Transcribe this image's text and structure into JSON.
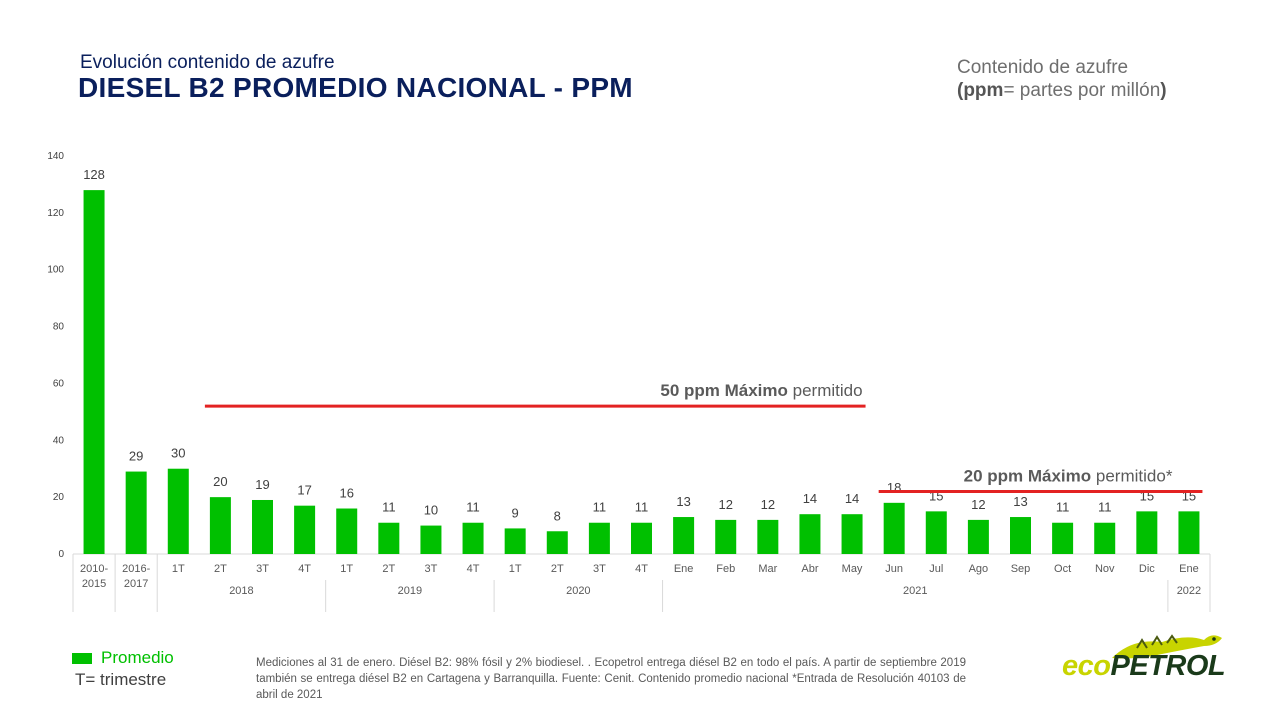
{
  "header": {
    "subtitle": "Evolución contenido de azufre",
    "title": "DIESEL B2 PROMEDIO NACIONAL - PPM",
    "unit_line1": "Contenido de azufre",
    "unit_line2_bold_open": "(ppm",
    "unit_line2_text": "= partes por millón",
    "unit_line2_bold_close": ")"
  },
  "chart_data": {
    "type": "bar",
    "categories": [
      "2010-2015",
      "2016-2017",
      "1T",
      "2T",
      "3T",
      "4T",
      "1T",
      "2T",
      "3T",
      "4T",
      "1T",
      "2T",
      "3T",
      "4T",
      "Ene",
      "Feb",
      "Mar",
      "Abr",
      "May",
      "Jun",
      "Jul",
      "Ago",
      "Sep",
      "Oct",
      "Nov",
      "Dic",
      "Ene"
    ],
    "category_labels": [
      [
        "2010-",
        "2015"
      ],
      [
        "2016-",
        "2017"
      ],
      [
        "1T"
      ],
      [
        "2T"
      ],
      [
        "3T"
      ],
      [
        "4T"
      ],
      [
        "1T"
      ],
      [
        "2T"
      ],
      [
        "3T"
      ],
      [
        "4T"
      ],
      [
        "1T"
      ],
      [
        "2T"
      ],
      [
        "3T"
      ],
      [
        "4T"
      ],
      [
        "Ene"
      ],
      [
        "Feb"
      ],
      [
        "Mar"
      ],
      [
        "Abr"
      ],
      [
        "May"
      ],
      [
        "Jun"
      ],
      [
        "Jul"
      ],
      [
        "Ago"
      ],
      [
        "Sep"
      ],
      [
        "Oct"
      ],
      [
        "Nov"
      ],
      [
        "Dic"
      ],
      [
        "Ene"
      ]
    ],
    "groups": [
      {
        "label": "2018",
        "start": 2,
        "end": 5
      },
      {
        "label": "2019",
        "start": 6,
        "end": 9
      },
      {
        "label": "2020",
        "start": 10,
        "end": 13
      },
      {
        "label": "2021",
        "start": 14,
        "end": 25
      },
      {
        "label": "2022",
        "start": 26,
        "end": 26
      }
    ],
    "series": [
      {
        "name": "Promedio",
        "color": "#00c000",
        "values": [
          128,
          29,
          30,
          20,
          19,
          17,
          16,
          11,
          10,
          11,
          9,
          8,
          11,
          11,
          13,
          12,
          12,
          14,
          14,
          18,
          15,
          12,
          13,
          11,
          11,
          15,
          15
        ]
      }
    ],
    "ylim": [
      0,
      140
    ],
    "yticks": [
      0,
      20,
      40,
      60,
      80,
      100,
      120,
      140
    ],
    "limits": [
      {
        "value": 52,
        "from_index": 3,
        "to_index": 18,
        "bold": "50 ppm Máximo",
        "text": " permitido",
        "color": "#e32222"
      },
      {
        "value": 22,
        "from_index": 19,
        "to_index": 26,
        "bold": "20 ppm Máximo",
        "text": " permitido*",
        "color": "#e32222"
      }
    ],
    "grid": false
  },
  "legend": {
    "label": "Promedio",
    "note": "T= trimestre"
  },
  "footnote": {
    "text": "Mediciones al 31 de enero. Diésel B2: 98% fósil y 2% biodiesel. . Ecopetrol entrega diésel B2 en todo el país. A partir de septiembre 2019 también se entrega diésel B2 en Cartagena y Barranquilla. Fuente: Cenit. Contenido promedio nacional *Entrada de Resolución 40103 de abril de 2021"
  },
  "logo": {
    "eco": "eco",
    "petrol": "PETROL"
  }
}
